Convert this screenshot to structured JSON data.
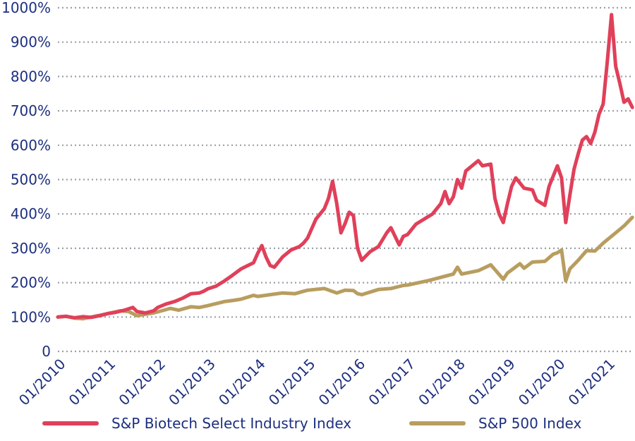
{
  "chart_data": {
    "type": "line",
    "title": "",
    "xlabel": "",
    "ylabel": "",
    "ylim": [
      0,
      1000
    ],
    "y_ticks": [
      {
        "value": 0,
        "label": "0"
      },
      {
        "value": 100,
        "label": "100%"
      },
      {
        "value": 200,
        "label": "200%"
      },
      {
        "value": 300,
        "label": "300%"
      },
      {
        "value": 400,
        "label": "400%"
      },
      {
        "value": 500,
        "label": "500%"
      },
      {
        "value": 600,
        "label": "600%"
      },
      {
        "value": 700,
        "label": "700%"
      },
      {
        "value": 800,
        "label": "800%"
      },
      {
        "value": 900,
        "label": "900%"
      },
      {
        "value": 1000,
        "label": "1000%"
      }
    ],
    "x_ticks": [
      "01/2010",
      "01/2011",
      "01/2012",
      "01/2013",
      "01/2014",
      "01/2015",
      "01/2016",
      "01/2017",
      "01/2018",
      "01/2019",
      "01/2020",
      "01/2021"
    ],
    "grid": true,
    "legend_position": "bottom",
    "series": [
      {
        "name": "S&P Biotech Select Industry Index",
        "color": "#e0405a",
        "points": [
          [
            "01/2010",
            100
          ],
          [
            "03/2010",
            102
          ],
          [
            "05/2010",
            98
          ],
          [
            "07/2010",
            101
          ],
          [
            "09/2010",
            99
          ],
          [
            "11/2010",
            104
          ],
          [
            "01/2011",
            110
          ],
          [
            "03/2011",
            114
          ],
          [
            "05/2011",
            120
          ],
          [
            "07/2011",
            128
          ],
          [
            "08/2011",
            116
          ],
          [
            "10/2011",
            112
          ],
          [
            "12/2011",
            118
          ],
          [
            "01/2012",
            128
          ],
          [
            "03/2012",
            138
          ],
          [
            "05/2012",
            145
          ],
          [
            "07/2012",
            155
          ],
          [
            "09/2012",
            168
          ],
          [
            "11/2012",
            170
          ],
          [
            "12/2012",
            175
          ],
          [
            "01/2013",
            182
          ],
          [
            "03/2013",
            190
          ],
          [
            "05/2013",
            205
          ],
          [
            "07/2013",
            222
          ],
          [
            "09/2013",
            240
          ],
          [
            "11/2013",
            252
          ],
          [
            "12/2013",
            258
          ],
          [
            "01/2014",
            285
          ],
          [
            "02/2014",
            308
          ],
          [
            "03/2014",
            275
          ],
          [
            "04/2014",
            250
          ],
          [
            "05/2014",
            245
          ],
          [
            "07/2014",
            275
          ],
          [
            "09/2014",
            295
          ],
          [
            "11/2014",
            305
          ],
          [
            "12/2014",
            315
          ],
          [
            "01/2015",
            330
          ],
          [
            "03/2015",
            385
          ],
          [
            "05/2015",
            415
          ],
          [
            "06/2015",
            445
          ],
          [
            "07/2015",
            495
          ],
          [
            "08/2015",
            430
          ],
          [
            "09/2015",
            345
          ],
          [
            "10/2015",
            372
          ],
          [
            "11/2015",
            405
          ],
          [
            "12/2015",
            395
          ],
          [
            "01/2016",
            300
          ],
          [
            "02/2016",
            265
          ],
          [
            "04/2016",
            290
          ],
          [
            "06/2016",
            305
          ],
          [
            "08/2016",
            345
          ],
          [
            "09/2016",
            360
          ],
          [
            "11/2016",
            310
          ],
          [
            "12/2016",
            335
          ],
          [
            "01/2017",
            340
          ],
          [
            "03/2017",
            370
          ],
          [
            "05/2017",
            385
          ],
          [
            "07/2017",
            400
          ],
          [
            "09/2017",
            430
          ],
          [
            "10/2017",
            465
          ],
          [
            "11/2017",
            430
          ],
          [
            "12/2017",
            450
          ],
          [
            "01/2018",
            500
          ],
          [
            "02/2018",
            475
          ],
          [
            "03/2018",
            525
          ],
          [
            "06/2018",
            555
          ],
          [
            "07/2018",
            540
          ],
          [
            "09/2018",
            545
          ],
          [
            "10/2018",
            445
          ],
          [
            "11/2018",
            400
          ],
          [
            "12/2018",
            375
          ],
          [
            "01/2019",
            430
          ],
          [
            "02/2019",
            480
          ],
          [
            "03/2019",
            505
          ],
          [
            "05/2019",
            475
          ],
          [
            "07/2019",
            470
          ],
          [
            "08/2019",
            440
          ],
          [
            "10/2019",
            425
          ],
          [
            "11/2019",
            480
          ],
          [
            "12/2019",
            510
          ],
          [
            "01/2020",
            540
          ],
          [
            "02/2020",
            505
          ],
          [
            "03/2020",
            375
          ],
          [
            "04/2020",
            455
          ],
          [
            "05/2020",
            530
          ],
          [
            "06/2020",
            575
          ],
          [
            "07/2020",
            615
          ],
          [
            "08/2020",
            625
          ],
          [
            "09/2020",
            605
          ],
          [
            "10/2020",
            638
          ],
          [
            "11/2020",
            690
          ],
          [
            "12/2020",
            720
          ],
          [
            "01/2021",
            845
          ],
          [
            "02/2021",
            980
          ],
          [
            "03/2021",
            830
          ],
          [
            "04/2021",
            780
          ],
          [
            "05/2021",
            725
          ],
          [
            "06/2021",
            735
          ],
          [
            "07/2021",
            710
          ]
        ]
      },
      {
        "name": "S&P 500 Index",
        "color": "#b89d5f",
        "points": [
          [
            "01/2010",
            100
          ],
          [
            "03/2010",
            102
          ],
          [
            "05/2010",
            97
          ],
          [
            "07/2010",
            95
          ],
          [
            "09/2010",
            100
          ],
          [
            "11/2010",
            105
          ],
          [
            "01/2011",
            110
          ],
          [
            "04/2011",
            118
          ],
          [
            "06/2011",
            116
          ],
          [
            "08/2011",
            104
          ],
          [
            "10/2011",
            108
          ],
          [
            "12/2011",
            112
          ],
          [
            "01/2012",
            115
          ],
          [
            "04/2012",
            125
          ],
          [
            "06/2012",
            120
          ],
          [
            "09/2012",
            130
          ],
          [
            "11/2012",
            128
          ],
          [
            "01/2013",
            133
          ],
          [
            "05/2013",
            145
          ],
          [
            "07/2013",
            148
          ],
          [
            "09/2013",
            152
          ],
          [
            "12/2013",
            163
          ],
          [
            "01/2014",
            160
          ],
          [
            "04/2014",
            165
          ],
          [
            "07/2014",
            170
          ],
          [
            "10/2014",
            168
          ],
          [
            "12/2014",
            175
          ],
          [
            "01/2015",
            178
          ],
          [
            "05/2015",
            183
          ],
          [
            "08/2015",
            170
          ],
          [
            "10/2015",
            178
          ],
          [
            "12/2015",
            177
          ],
          [
            "01/2016",
            168
          ],
          [
            "02/2016",
            165
          ],
          [
            "06/2016",
            180
          ],
          [
            "09/2016",
            183
          ],
          [
            "12/2016",
            192
          ],
          [
            "01/2017",
            193
          ],
          [
            "06/2017",
            206
          ],
          [
            "12/2017",
            225
          ],
          [
            "01/2018",
            245
          ],
          [
            "02/2018",
            225
          ],
          [
            "06/2018",
            235
          ],
          [
            "09/2018",
            252
          ],
          [
            "10/2018",
            238
          ],
          [
            "12/2018",
            210
          ],
          [
            "01/2019",
            228
          ],
          [
            "04/2019",
            255
          ],
          [
            "05/2019",
            242
          ],
          [
            "07/2019",
            260
          ],
          [
            "10/2019",
            262
          ],
          [
            "12/2019",
            283
          ],
          [
            "01/2020",
            287
          ],
          [
            "02/2020",
            295
          ],
          [
            "03/2020",
            205
          ],
          [
            "04/2020",
            240
          ],
          [
            "06/2020",
            265
          ],
          [
            "08/2020",
            293
          ],
          [
            "10/2020",
            292
          ],
          [
            "12/2020",
            315
          ],
          [
            "01/2021",
            325
          ],
          [
            "03/2021",
            345
          ],
          [
            "05/2021",
            365
          ],
          [
            "07/2021",
            390
          ]
        ]
      }
    ]
  }
}
